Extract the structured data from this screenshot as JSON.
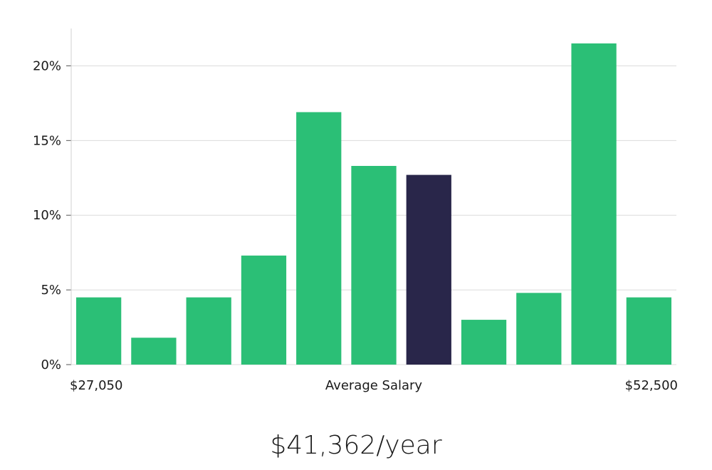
{
  "chart_data": {
    "type": "bar",
    "values": [
      4.5,
      1.8,
      4.5,
      7.3,
      16.9,
      13.3,
      12.7,
      3.0,
      4.8,
      21.5,
      4.5
    ],
    "highlight_index": 6,
    "ylim": [
      0,
      22.5
    ],
    "yticks": [
      0,
      5,
      10,
      15,
      20
    ],
    "ytick_labels": [
      "0%",
      "5%",
      "10%",
      "15%",
      "20%"
    ],
    "xlabel_left": "$27,050",
    "xlabel_center": "Average Salary",
    "xlabel_right": "$52,500",
    "colors": {
      "bar": "#2bbf76",
      "highlight": "#29264a",
      "grid": "#dcdcdc"
    }
  },
  "summary": {
    "salary": "$41,362/year"
  }
}
